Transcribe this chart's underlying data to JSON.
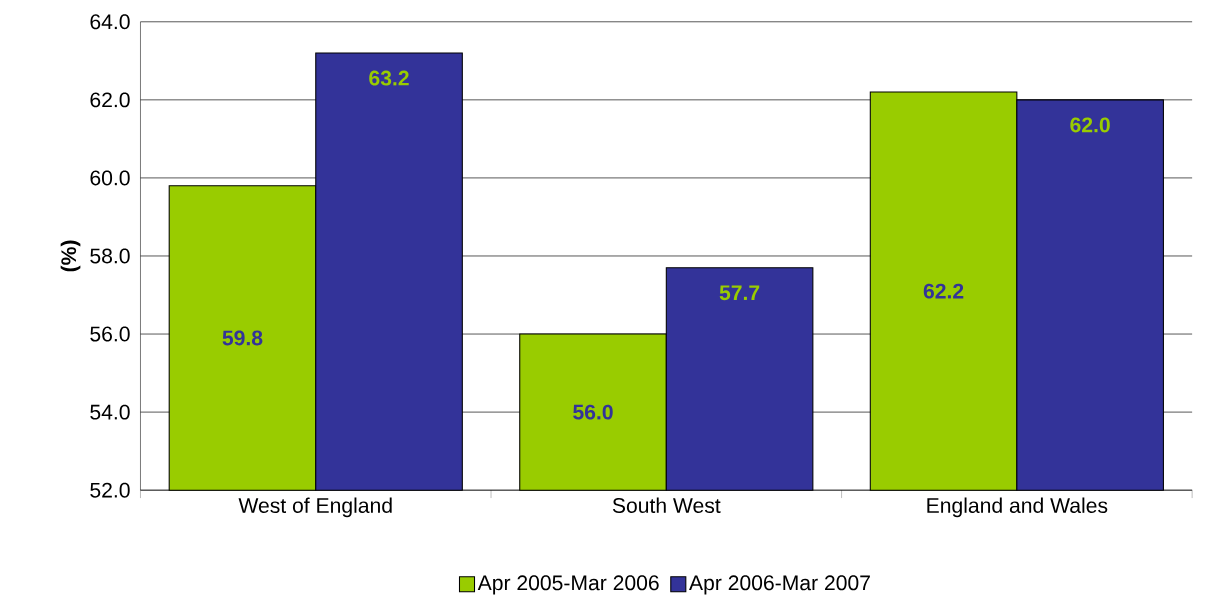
{
  "chart_data": {
    "type": "bar",
    "ylabel": "(%)",
    "categories": [
      "West of England",
      "South West",
      "England and Wales"
    ],
    "series": [
      {
        "name": "Apr 2005-Mar 2006",
        "color": "#99cc00",
        "values": [
          59.8,
          56.0,
          62.2
        ],
        "value_labels": [
          "59.8",
          "56.0",
          "62.2"
        ]
      },
      {
        "name": "Apr 2006-Mar 2007",
        "color": "#333399",
        "values": [
          63.2,
          57.7,
          62.0
        ],
        "value_labels": [
          "63.2",
          "57.7",
          "62.0"
        ]
      }
    ],
    "ylim": [
      52,
      64
    ],
    "yticks": [
      {
        "value": 52,
        "label": "52.0"
      },
      {
        "value": 54,
        "label": "54.0"
      },
      {
        "value": 56,
        "label": "56.0"
      },
      {
        "value": 58,
        "label": "58.0"
      },
      {
        "value": 60,
        "label": "60.0"
      },
      {
        "value": 62,
        "label": "62.0"
      },
      {
        "value": 64,
        "label": "64.0"
      }
    ],
    "grid": "y",
    "legend": "bottom"
  }
}
